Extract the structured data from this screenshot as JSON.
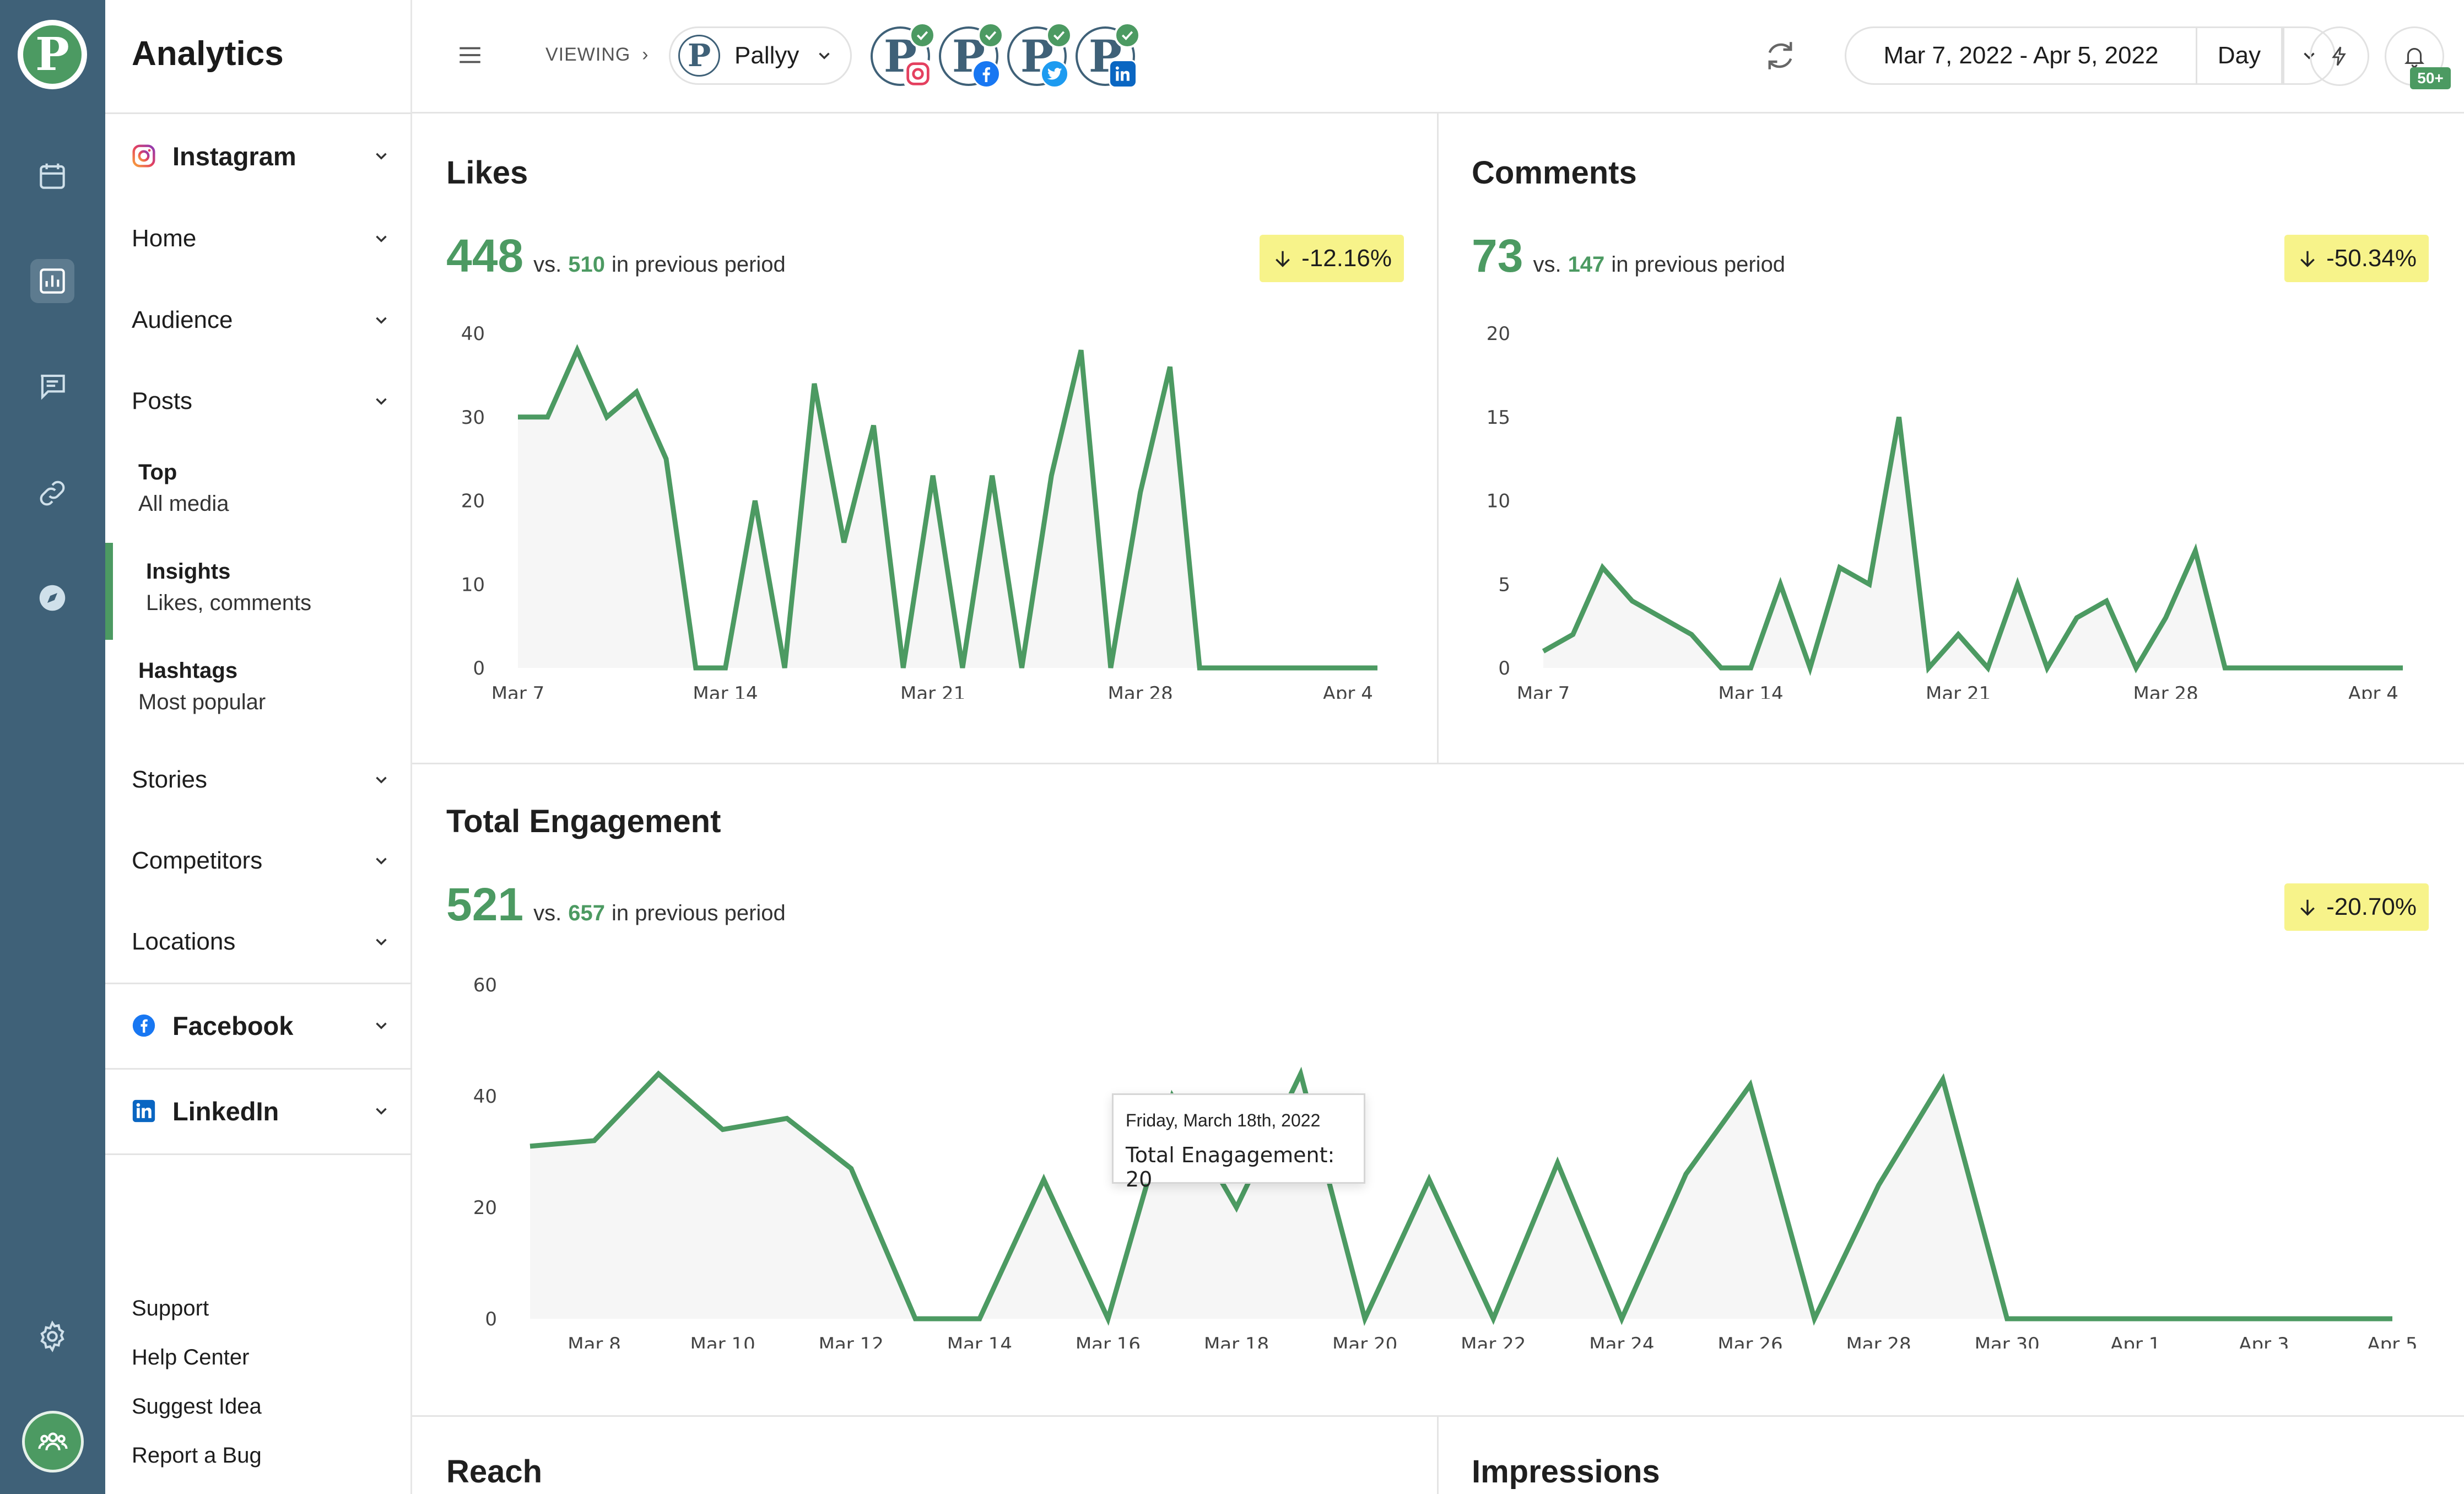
{
  "app": {
    "title": "Analytics"
  },
  "colors": {
    "rail": "#3f6178",
    "accent": "#4c9a62",
    "delta_bg": "#f7f38a"
  },
  "rail": {
    "icons": [
      "calendar-icon",
      "chart-icon",
      "message-icon",
      "link-icon",
      "compass-icon",
      "settings-icon",
      "team-icon"
    ]
  },
  "sidebar": {
    "platforms": {
      "instagram": "Instagram",
      "facebook": "Facebook",
      "linkedin": "LinkedIn"
    },
    "sections": [
      "Home",
      "Audience",
      "Posts",
      "Stories",
      "Competitors",
      "Locations"
    ],
    "posts_sub": [
      {
        "title": "Top",
        "desc": "All media"
      },
      {
        "title": "Insights",
        "desc": "Likes, comments"
      },
      {
        "title": "Hashtags",
        "desc": "Most popular"
      }
    ],
    "links": [
      "Support",
      "Help Center",
      "Suggest Idea",
      "Report a Bug"
    ]
  },
  "topbar": {
    "viewing": "VIEWING",
    "viewing_sep": "›",
    "account": "Pallyy",
    "account_initial": "P",
    "social_profiles": [
      "instagram",
      "facebook",
      "twitter",
      "linkedin"
    ],
    "date_range": "Mar 7, 2022 - Apr 5, 2022",
    "granularity": "Day",
    "notifications": "50+"
  },
  "likes": {
    "title": "Likes",
    "value": "448",
    "vs": "vs.",
    "previous": "510",
    "in_previous": "in previous period",
    "delta": "-12.16%"
  },
  "comments": {
    "title": "Comments",
    "value": "73",
    "vs": "vs.",
    "previous": "147",
    "in_previous": "in previous period",
    "delta": "-50.34%"
  },
  "engagement": {
    "title": "Total Engagement",
    "value": "521",
    "vs": "vs.",
    "previous": "657",
    "in_previous": "in previous period",
    "delta": "-20.70%",
    "tooltip": {
      "date": "Friday, March 18th, 2022",
      "label": "Total Enagagement:",
      "value": "20"
    }
  },
  "reach": {
    "title": "Reach"
  },
  "impressions": {
    "title": "Impressions"
  },
  "chart_data": [
    {
      "type": "area",
      "title": "Likes",
      "x": [
        "Mar 7",
        "Mar 8",
        "Mar 9",
        "Mar 10",
        "Mar 11",
        "Mar 12",
        "Mar 13",
        "Mar 14",
        "Mar 15",
        "Mar 16",
        "Mar 17",
        "Mar 18",
        "Mar 19",
        "Mar 20",
        "Mar 21",
        "Mar 22",
        "Mar 23",
        "Mar 24",
        "Mar 25",
        "Mar 26",
        "Mar 27",
        "Mar 28",
        "Mar 29",
        "Mar 30",
        "Mar 31",
        "Apr 1",
        "Apr 2",
        "Apr 3",
        "Apr 4",
        "Apr 5"
      ],
      "values": [
        30,
        30,
        38,
        30,
        33,
        25,
        0,
        0,
        20,
        0,
        34,
        15,
        29,
        0,
        23,
        0,
        23,
        0,
        23,
        38,
        0,
        21,
        36,
        0,
        0,
        0,
        0,
        0,
        0,
        0
      ],
      "xticks": [
        "Mar 7",
        "Mar 14",
        "Mar 21",
        "Mar 28",
        "Apr 4"
      ],
      "yticks": [
        0,
        10,
        20,
        30,
        40
      ],
      "ylim": [
        0,
        40
      ],
      "color": "#4c9a62"
    },
    {
      "type": "area",
      "title": "Comments",
      "x": [
        "Mar 7",
        "Mar 8",
        "Mar 9",
        "Mar 10",
        "Mar 11",
        "Mar 12",
        "Mar 13",
        "Mar 14",
        "Mar 15",
        "Mar 16",
        "Mar 17",
        "Mar 18",
        "Mar 19",
        "Mar 20",
        "Mar 21",
        "Mar 22",
        "Mar 23",
        "Mar 24",
        "Mar 25",
        "Mar 26",
        "Mar 27",
        "Mar 28",
        "Mar 29",
        "Mar 30",
        "Mar 31",
        "Apr 1",
        "Apr 2",
        "Apr 3",
        "Apr 4",
        "Apr 5"
      ],
      "values": [
        1,
        2,
        6,
        4,
        3,
        2,
        0,
        0,
        5,
        0,
        6,
        5,
        15,
        0,
        2,
        0,
        5,
        0,
        3,
        4,
        0,
        3,
        7,
        0,
        0,
        0,
        0,
        0,
        0,
        0
      ],
      "xticks": [
        "Mar 7",
        "Mar 14",
        "Mar 21",
        "Mar 28",
        "Apr 4"
      ],
      "yticks": [
        0,
        5,
        10,
        15,
        20
      ],
      "ylim": [
        0,
        20
      ],
      "color": "#4c9a62"
    },
    {
      "type": "area",
      "title": "Total Engagement",
      "x": [
        "Mar 7",
        "Mar 8",
        "Mar 9",
        "Mar 10",
        "Mar 11",
        "Mar 12",
        "Mar 13",
        "Mar 14",
        "Mar 15",
        "Mar 16",
        "Mar 17",
        "Mar 18",
        "Mar 19",
        "Mar 20",
        "Mar 21",
        "Mar 22",
        "Mar 23",
        "Mar 24",
        "Mar 25",
        "Mar 26",
        "Mar 27",
        "Mar 28",
        "Mar 29",
        "Mar 30",
        "Mar 31",
        "Apr 1",
        "Apr 2",
        "Apr 3",
        "Apr 4",
        "Apr 5"
      ],
      "values": [
        31,
        32,
        44,
        34,
        36,
        27,
        0,
        0,
        25,
        0,
        40,
        20,
        44,
        0,
        25,
        0,
        28,
        0,
        26,
        42,
        0,
        24,
        43,
        0,
        0,
        0,
        0,
        0,
        0,
        0
      ],
      "xticks": [
        "Mar 8",
        "Mar 10",
        "Mar 12",
        "Mar 14",
        "Mar 16",
        "Mar 18",
        "Mar 20",
        "Mar 22",
        "Mar 24",
        "Mar 26",
        "Mar 28",
        "Mar 30",
        "Apr 1",
        "Apr 3",
        "Apr 5"
      ],
      "yticks": [
        0,
        20,
        40,
        60
      ],
      "ylim": [
        0,
        60
      ],
      "color": "#4c9a62"
    }
  ]
}
